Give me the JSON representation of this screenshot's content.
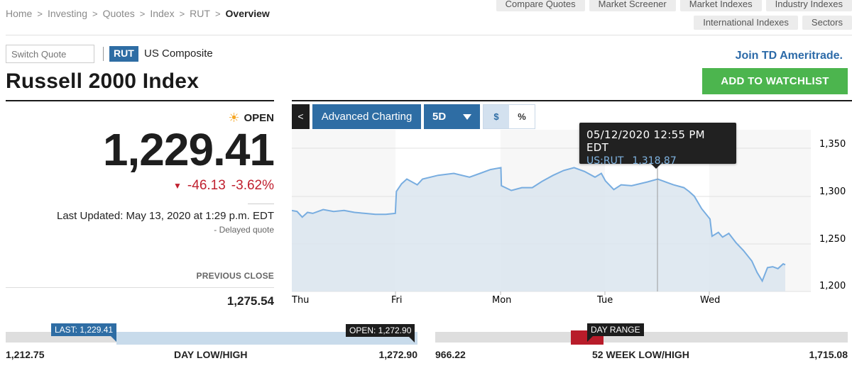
{
  "breadcrumb": [
    {
      "label": "Home"
    },
    {
      "label": "Investing"
    },
    {
      "label": "Quotes"
    },
    {
      "label": "Index"
    },
    {
      "label": "RUT"
    },
    {
      "label": "Overview",
      "current": true
    }
  ],
  "topnav": {
    "row1": [
      "Compare Quotes",
      "Market Screener",
      "Market Indexes",
      "Industry Indexes"
    ],
    "row2": [
      "International Indexes",
      "Sectors"
    ]
  },
  "quote_header": {
    "switch_placeholder": "Switch Quote",
    "ticker": "RUT",
    "exchange": "US Composite",
    "title": "Russell 2000 Index",
    "join_link": "Join TD Ameritrade.",
    "watchlist_button": "ADD TO WATCHLIST"
  },
  "quote": {
    "status": "OPEN",
    "status_icon": "sun-icon",
    "price": "1,229.41",
    "change": "-46.13",
    "change_pct": "-3.62%",
    "direction_icon": "▼",
    "last_updated": "Last Updated: May 13, 2020 at 1:29 p.m. EDT",
    "delayed": "-  Delayed quote",
    "previous_close_label": "PREVIOUS CLOSE",
    "previous_close": "1,275.54"
  },
  "chart_toolbar": {
    "back": "<",
    "advanced": "Advanced Charting",
    "range": "5D",
    "dollar": "$",
    "percent": "%"
  },
  "tooltip": {
    "time": "05/12/2020 12:55 PM EDT",
    "symbol": "US:RUT",
    "value": "1,318.87"
  },
  "ranges": {
    "day_low": "1,212.75",
    "day_label": "DAY LOW/HIGH",
    "day_high": "1,272.90",
    "last_flag": "LAST: 1,229.41",
    "open_flag": "OPEN: 1,272.90",
    "wk_low": "966.22",
    "wk_label": "52 WEEK LOW/HIGH",
    "wk_high": "1,715.08",
    "range_flag": "DAY RANGE"
  },
  "colors": {
    "accent_blue": "#2e6da4",
    "negative_red": "#c0202f",
    "watchlist_green": "#4cb54e",
    "line": "#78ade0",
    "area": "#dfe8f1"
  },
  "chart_data": {
    "type": "area",
    "title": "Russell 2000 Index 5D",
    "x_ticks": [
      "Thu",
      "Fri",
      "Mon",
      "Tue",
      "Wed"
    ],
    "y_ticks": [
      1200,
      1250,
      1300,
      1350
    ],
    "ylim": [
      1195,
      1355
    ],
    "grid": true,
    "series": [
      {
        "name": "US:RUT",
        "points": [
          [
            0.0,
            1285
          ],
          [
            0.05,
            1284
          ],
          [
            0.1,
            1278
          ],
          [
            0.15,
            1283
          ],
          [
            0.2,
            1282
          ],
          [
            0.3,
            1286
          ],
          [
            0.4,
            1284
          ],
          [
            0.5,
            1285
          ],
          [
            0.6,
            1283
          ],
          [
            0.7,
            1282
          ],
          [
            0.8,
            1281
          ],
          [
            0.9,
            1281
          ],
          [
            0.99,
            1282
          ],
          [
            1.0,
            1305
          ],
          [
            1.05,
            1313
          ],
          [
            1.1,
            1318
          ],
          [
            1.2,
            1312
          ],
          [
            1.25,
            1318
          ],
          [
            1.4,
            1322
          ],
          [
            1.55,
            1324
          ],
          [
            1.7,
            1320
          ],
          [
            1.8,
            1324
          ],
          [
            1.9,
            1328
          ],
          [
            2.0,
            1330
          ],
          [
            2.005,
            1311
          ],
          [
            2.1,
            1306
          ],
          [
            2.2,
            1309
          ],
          [
            2.3,
            1309
          ],
          [
            2.4,
            1316
          ],
          [
            2.5,
            1322
          ],
          [
            2.6,
            1327
          ],
          [
            2.7,
            1330
          ],
          [
            2.8,
            1326
          ],
          [
            2.9,
            1320
          ],
          [
            2.96,
            1324
          ],
          [
            3.0,
            1316
          ],
          [
            3.08,
            1307
          ],
          [
            3.15,
            1312
          ],
          [
            3.25,
            1311
          ],
          [
            3.4,
            1315
          ],
          [
            3.5,
            1318
          ],
          [
            3.6,
            1314
          ],
          [
            3.65,
            1312
          ],
          [
            3.75,
            1309
          ],
          [
            3.8,
            1305
          ],
          [
            3.85,
            1300
          ],
          [
            3.92,
            1287
          ],
          [
            4.0,
            1276
          ],
          [
            4.02,
            1258
          ],
          [
            4.08,
            1262
          ],
          [
            4.12,
            1257
          ],
          [
            4.18,
            1261
          ],
          [
            4.25,
            1251
          ],
          [
            4.32,
            1243
          ],
          [
            4.4,
            1232
          ],
          [
            4.45,
            1220
          ],
          [
            4.5,
            1211
          ],
          [
            4.55,
            1225
          ],
          [
            4.6,
            1226
          ],
          [
            4.65,
            1224
          ],
          [
            4.7,
            1229
          ],
          [
            4.72,
            1228
          ]
        ]
      }
    ],
    "crosshair": {
      "x": 3.52,
      "label": "05/12/2020 12:55 PM EDT",
      "value": 1318.87
    }
  }
}
